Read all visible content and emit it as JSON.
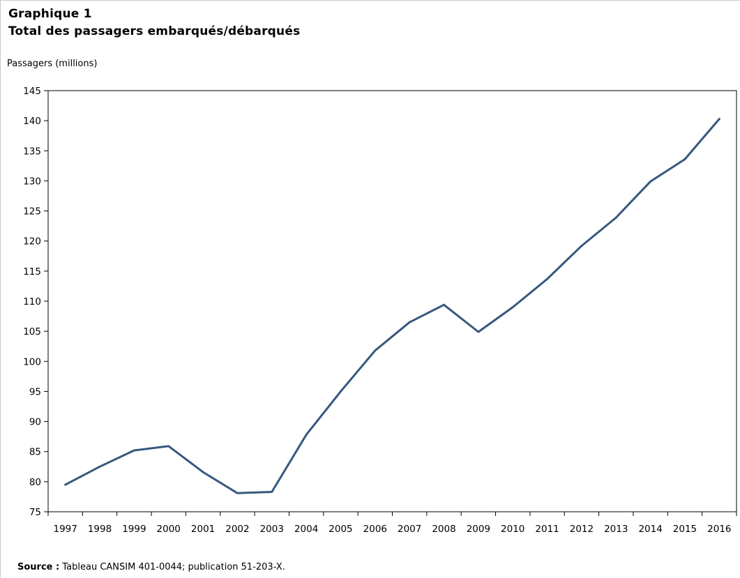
{
  "chart_title_line1": "Graphique 1",
  "chart_title_line2": "Total des passagers embarqués/débarqués",
  "source": {
    "label": "Source :",
    "text": "Tableau CANSIM 401-0044; publication 51-203-X."
  },
  "chart_data": {
    "type": "line",
    "ylabel": "Passagers (millions)",
    "xlabel": "",
    "ylim": [
      75,
      145
    ],
    "yticks": [
      75,
      80,
      85,
      90,
      95,
      100,
      105,
      110,
      115,
      120,
      125,
      130,
      135,
      140,
      145
    ],
    "grid": false,
    "categories": [
      "1997",
      "1998",
      "1999",
      "2000",
      "2001",
      "2002",
      "2003",
      "2004",
      "2005",
      "2006",
      "2007",
      "2008",
      "2009",
      "2010",
      "2011",
      "2012",
      "2013",
      "2014",
      "2015",
      "2016"
    ],
    "series": [
      {
        "color": "#36587e",
        "values": [
          79.5,
          82.5,
          85.2,
          85.9,
          81.6,
          78.1,
          78.3,
          87.8,
          95.0,
          101.8,
          106.5,
          109.4,
          104.9,
          109.0,
          113.7,
          119.2,
          123.9,
          129.9,
          133.6,
          140.3
        ]
      }
    ]
  }
}
